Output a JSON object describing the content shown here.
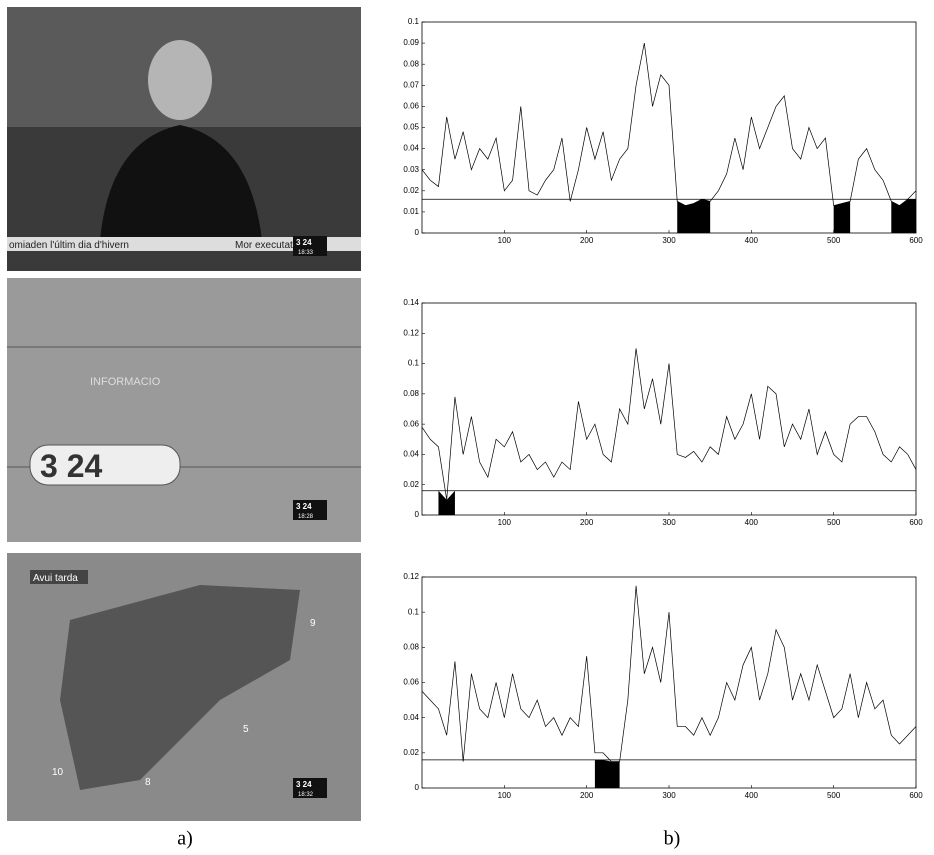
{
  "frames": [
    {
      "ticker": "omiaden l'últim dia d'hivern",
      "ticker2": "Mor executat a",
      "logo": "3 24",
      "clock": "18:33"
    },
    {
      "brand": "INFORMACIO",
      "logo": "3 24",
      "clock": "18:28"
    },
    {
      "label": "Avui tarda",
      "temps": [
        "9",
        "5",
        "10",
        "8"
      ],
      "logo": "3 24",
      "clock": "18:32"
    }
  ],
  "captions": [
    "a)",
    "b)"
  ],
  "chart_data": [
    {
      "type": "line",
      "xlim": [
        0,
        600
      ],
      "ylim": [
        0,
        0.1
      ],
      "xticks": [
        100,
        200,
        300,
        400,
        500,
        600
      ],
      "yticks": [
        0,
        0.01,
        0.02,
        0.03,
        0.04,
        0.05,
        0.06,
        0.07,
        0.08,
        0.09,
        0.1
      ],
      "threshold": 0.016,
      "shaded_ranges": [
        [
          310,
          350
        ],
        [
          500,
          520
        ],
        [
          570,
          600
        ]
      ],
      "color": "#000000",
      "x": [
        0,
        10,
        20,
        30,
        40,
        50,
        60,
        70,
        80,
        90,
        100,
        110,
        120,
        130,
        140,
        150,
        160,
        170,
        180,
        190,
        200,
        210,
        220,
        230,
        240,
        250,
        260,
        270,
        280,
        290,
        300,
        310,
        320,
        330,
        340,
        350,
        360,
        370,
        380,
        390,
        400,
        410,
        420,
        430,
        440,
        450,
        460,
        470,
        480,
        490,
        500,
        510,
        520,
        530,
        540,
        550,
        560,
        570,
        580,
        590,
        600
      ],
      "values": [
        0.03,
        0.025,
        0.022,
        0.055,
        0.035,
        0.048,
        0.03,
        0.04,
        0.035,
        0.045,
        0.02,
        0.025,
        0.06,
        0.02,
        0.018,
        0.025,
        0.03,
        0.045,
        0.015,
        0.03,
        0.05,
        0.035,
        0.048,
        0.025,
        0.035,
        0.04,
        0.07,
        0.09,
        0.06,
        0.075,
        0.07,
        0.015,
        0.013,
        0.014,
        0.016,
        0.015,
        0.02,
        0.028,
        0.045,
        0.03,
        0.055,
        0.04,
        0.05,
        0.06,
        0.065,
        0.04,
        0.035,
        0.05,
        0.04,
        0.045,
        0.013,
        0.014,
        0.015,
        0.035,
        0.04,
        0.03,
        0.025,
        0.015,
        0.013,
        0.016,
        0.02
      ]
    },
    {
      "type": "line",
      "xlim": [
        0,
        600
      ],
      "ylim": [
        0,
        0.14
      ],
      "xticks": [
        100,
        200,
        300,
        400,
        500,
        600
      ],
      "yticks": [
        0,
        0.02,
        0.04,
        0.06,
        0.08,
        0.1,
        0.12,
        0.14
      ],
      "threshold": 0.016,
      "shaded_ranges": [
        [
          20,
          40
        ]
      ],
      "color": "#000000",
      "x": [
        0,
        10,
        20,
        30,
        40,
        50,
        60,
        70,
        80,
        90,
        100,
        110,
        120,
        130,
        140,
        150,
        160,
        170,
        180,
        190,
        200,
        210,
        220,
        230,
        240,
        250,
        260,
        270,
        280,
        290,
        300,
        310,
        320,
        330,
        340,
        350,
        360,
        370,
        380,
        390,
        400,
        410,
        420,
        430,
        440,
        450,
        460,
        470,
        480,
        490,
        500,
        510,
        520,
        530,
        540,
        550,
        560,
        570,
        580,
        590,
        600
      ],
      "values": [
        0.058,
        0.05,
        0.045,
        0.01,
        0.078,
        0.04,
        0.065,
        0.035,
        0.025,
        0.05,
        0.045,
        0.055,
        0.035,
        0.04,
        0.03,
        0.035,
        0.025,
        0.035,
        0.03,
        0.075,
        0.05,
        0.06,
        0.04,
        0.035,
        0.07,
        0.06,
        0.11,
        0.07,
        0.09,
        0.06,
        0.1,
        0.04,
        0.038,
        0.042,
        0.035,
        0.045,
        0.04,
        0.065,
        0.05,
        0.06,
        0.08,
        0.05,
        0.085,
        0.08,
        0.045,
        0.06,
        0.05,
        0.07,
        0.04,
        0.055,
        0.04,
        0.035,
        0.06,
        0.065,
        0.065,
        0.055,
        0.04,
        0.035,
        0.045,
        0.04,
        0.03
      ]
    },
    {
      "type": "line",
      "xlim": [
        0,
        600
      ],
      "ylim": [
        0,
        0.12
      ],
      "xticks": [
        100,
        200,
        300,
        400,
        500,
        600
      ],
      "yticks": [
        0,
        0.02,
        0.04,
        0.06,
        0.08,
        0.1,
        0.12
      ],
      "threshold": 0.016,
      "shaded_ranges": [
        [
          210,
          240
        ]
      ],
      "color": "#000000",
      "x": [
        0,
        10,
        20,
        30,
        40,
        50,
        60,
        70,
        80,
        90,
        100,
        110,
        120,
        130,
        140,
        150,
        160,
        170,
        180,
        190,
        200,
        210,
        220,
        230,
        240,
        250,
        260,
        270,
        280,
        290,
        300,
        310,
        320,
        330,
        340,
        350,
        360,
        370,
        380,
        390,
        400,
        410,
        420,
        430,
        440,
        450,
        460,
        470,
        480,
        490,
        500,
        510,
        520,
        530,
        540,
        550,
        560,
        570,
        580,
        590,
        600
      ],
      "values": [
        0.055,
        0.05,
        0.045,
        0.03,
        0.072,
        0.015,
        0.065,
        0.045,
        0.04,
        0.06,
        0.04,
        0.065,
        0.045,
        0.04,
        0.05,
        0.035,
        0.04,
        0.03,
        0.04,
        0.035,
        0.075,
        0.02,
        0.02,
        0.015,
        0.015,
        0.05,
        0.115,
        0.065,
        0.08,
        0.06,
        0.1,
        0.035,
        0.035,
        0.03,
        0.04,
        0.03,
        0.04,
        0.06,
        0.05,
        0.07,
        0.08,
        0.05,
        0.065,
        0.09,
        0.08,
        0.05,
        0.065,
        0.05,
        0.07,
        0.055,
        0.04,
        0.045,
        0.065,
        0.04,
        0.06,
        0.045,
        0.05,
        0.03,
        0.025,
        0.03,
        0.035
      ]
    }
  ]
}
